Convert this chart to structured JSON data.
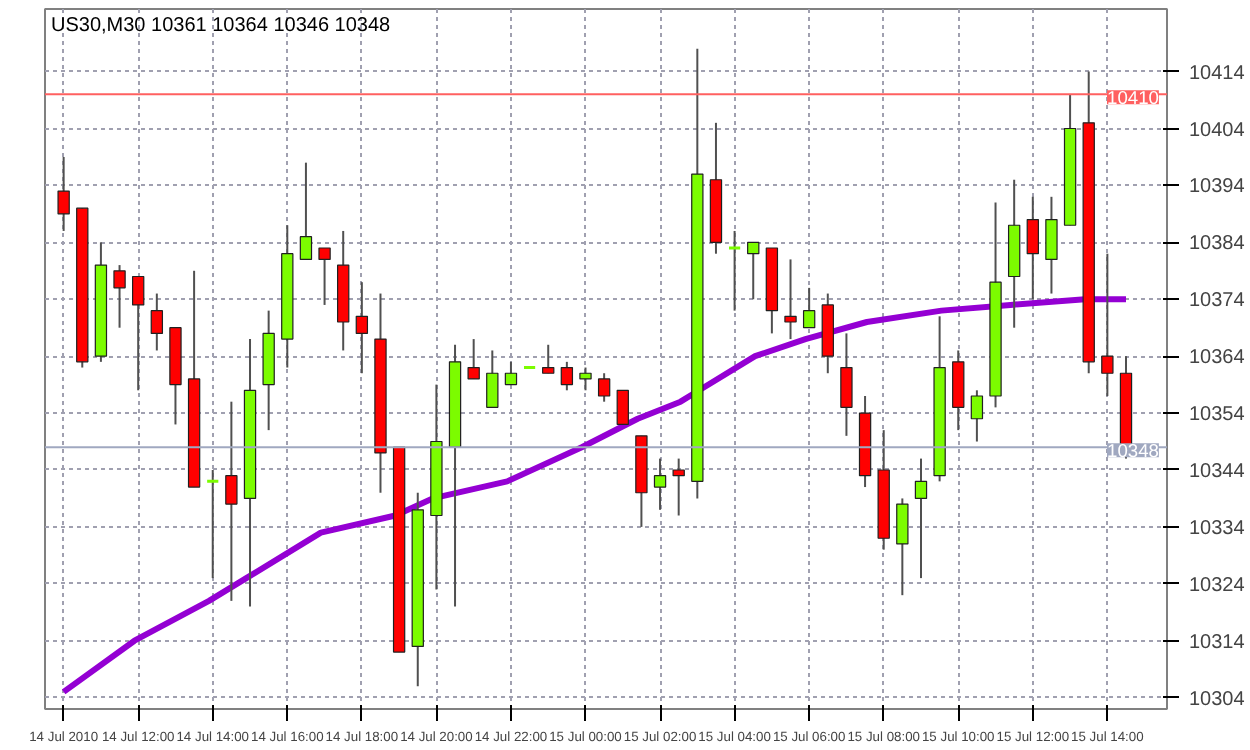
{
  "chart_data": {
    "type": "candlestick",
    "title": "US30,M30  10361 10364 10346 10348",
    "x": [
      "2010-07-14T10:00",
      "2010-07-14T10:30",
      "2010-07-14T11:00",
      "2010-07-14T11:30",
      "2010-07-14T12:00",
      "2010-07-14T12:30",
      "2010-07-14T13:00",
      "2010-07-14T13:30",
      "2010-07-14T14:00",
      "2010-07-14T14:30",
      "2010-07-14T15:00",
      "2010-07-14T15:30",
      "2010-07-14T16:00",
      "2010-07-14T16:30",
      "2010-07-14T17:00",
      "2010-07-14T17:30",
      "2010-07-14T18:00",
      "2010-07-14T18:30",
      "2010-07-14T19:00",
      "2010-07-14T19:30",
      "2010-07-14T20:00",
      "2010-07-14T20:30",
      "2010-07-14T21:00",
      "2010-07-14T21:30",
      "2010-07-14T22:00",
      "2010-07-14T22:30",
      "2010-07-14T23:00",
      "2010-07-14T23:30",
      "2010-07-15T00:00",
      "2010-07-15T00:30",
      "2010-07-15T01:00",
      "2010-07-15T01:30",
      "2010-07-15T02:00",
      "2010-07-15T02:30",
      "2010-07-15T03:00",
      "2010-07-15T03:30",
      "2010-07-15T04:00",
      "2010-07-15T04:30",
      "2010-07-15T05:00",
      "2010-07-15T05:30",
      "2010-07-15T06:00",
      "2010-07-15T06:30",
      "2010-07-15T07:00",
      "2010-07-15T07:30",
      "2010-07-15T08:00",
      "2010-07-15T08:30",
      "2010-07-15T09:00",
      "2010-07-15T09:30",
      "2010-07-15T10:00",
      "2010-07-15T10:30",
      "2010-07-15T11:00",
      "2010-07-15T11:30",
      "2010-07-15T12:00",
      "2010-07-15T12:30",
      "2010-07-15T13:00",
      "2010-07-15T13:30",
      "2010-07-15T14:00",
      "2010-07-15T14:30"
    ],
    "ohlc": [
      [
        10393,
        10399,
        10386,
        10389
      ],
      [
        10390,
        10390,
        10362,
        10363
      ],
      [
        10364,
        10384,
        10363,
        10380
      ],
      [
        10379,
        10380,
        10369,
        10376
      ],
      [
        10378,
        10378,
        10358,
        10373
      ],
      [
        10372,
        10375,
        10365,
        10368
      ],
      [
        10369,
        10369,
        10352,
        10359
      ],
      [
        10360,
        10379,
        10341,
        10341
      ],
      [
        10342,
        10344,
        10325,
        10342
      ],
      [
        10343,
        10356,
        10321,
        10338
      ],
      [
        10339,
        10367,
        10320,
        10358
      ],
      [
        10359,
        10372,
        10351,
        10368
      ],
      [
        10367,
        10387,
        10362,
        10382
      ],
      [
        10381,
        10398,
        10381,
        10385
      ],
      [
        10383,
        10383,
        10373,
        10381
      ],
      [
        10380,
        10386,
        10365,
        10370
      ],
      [
        10371,
        10377,
        10361,
        10368
      ],
      [
        10367,
        10375,
        10340,
        10347
      ],
      [
        10348,
        10348,
        10312,
        10312
      ],
      [
        10313,
        10340,
        10306,
        10337
      ],
      [
        10336,
        10359,
        10323,
        10349
      ],
      [
        10348,
        10366,
        10320,
        10363
      ],
      [
        10362,
        10367,
        10360,
        10360
      ],
      [
        10355,
        10365,
        10355,
        10361
      ],
      [
        10359,
        10363,
        10359,
        10361
      ],
      [
        10362,
        10362,
        10362,
        10362
      ],
      [
        10362,
        10366,
        10361,
        10361
      ],
      [
        10362,
        10363,
        10358,
        10359
      ],
      [
        10360,
        10362,
        10358,
        10361
      ],
      [
        10360,
        10361,
        10356,
        10357
      ],
      [
        10358,
        10358,
        10352,
        10352
      ],
      [
        10350,
        10350,
        10334,
        10340
      ],
      [
        10341,
        10346,
        10337,
        10343
      ],
      [
        10344,
        10346,
        10336,
        10343
      ],
      [
        10342,
        10418,
        10339,
        10396
      ],
      [
        10395,
        10405,
        10382,
        10384
      ],
      [
        10383,
        10386,
        10372,
        10383
      ],
      [
        10382,
        10384,
        10374,
        10384
      ],
      [
        10383,
        10383,
        10368,
        10372
      ],
      [
        10371,
        10381,
        10367,
        10370
      ],
      [
        10369,
        10376,
        10369,
        10372
      ],
      [
        10373,
        10375,
        10361,
        10364
      ],
      [
        10362,
        10368,
        10350,
        10355
      ],
      [
        10354,
        10357,
        10341,
        10343
      ],
      [
        10344,
        10351,
        10330,
        10332
      ],
      [
        10331,
        10339,
        10322,
        10338
      ],
      [
        10339,
        10346,
        10325,
        10342
      ],
      [
        10343,
        10371,
        10342,
        10362
      ],
      [
        10363,
        10365,
        10351,
        10355
      ],
      [
        10353,
        10358,
        10349,
        10357
      ],
      [
        10357,
        10391,
        10355,
        10377
      ],
      [
        10378,
        10395,
        10369,
        10387
      ],
      [
        10388,
        10392,
        10374,
        10382
      ],
      [
        10381,
        10392,
        10375,
        10388
      ],
      [
        10387,
        10410,
        10387,
        10404
      ],
      [
        10405,
        10414,
        10361,
        10363
      ],
      [
        10364,
        10382,
        10357,
        10361
      ],
      [
        10361,
        10364,
        10346,
        10348
      ]
    ],
    "colors": [
      "#ff0000",
      "#ff0000",
      "#7cfc00",
      "#ff0000",
      "#ff0000",
      "#ff0000",
      "#ff0000",
      "#ff0000",
      "#7cfc00",
      "#ff0000",
      "#7cfc00",
      "#7cfc00",
      "#7cfc00",
      "#7cfc00",
      "#ff0000",
      "#ff0000",
      "#ff0000",
      "#ff0000",
      "#ff0000",
      "#7cfc00",
      "#7cfc00",
      "#7cfc00",
      "#ff0000",
      "#7cfc00",
      "#7cfc00",
      "#7cfc00",
      "#ff0000",
      "#ff0000",
      "#7cfc00",
      "#ff0000",
      "#ff0000",
      "#ff0000",
      "#7cfc00",
      "#ff0000",
      "#7cfc00",
      "#ff0000",
      "#7cfc00",
      "#7cfc00",
      "#ff0000",
      "#ff0000",
      "#7cfc00",
      "#ff0000",
      "#ff0000",
      "#ff0000",
      "#ff0000",
      "#7cfc00",
      "#7cfc00",
      "#7cfc00",
      "#ff0000",
      "#7cfc00",
      "#7cfc00",
      "#7cfc00",
      "#ff0000",
      "#7cfc00",
      "#7cfc00",
      "#ff0000",
      "#ff0000",
      "#ff0000"
    ],
    "series": [
      {
        "type": "line",
        "color": "#9400d3",
        "x": [
          "2010-07-14T10:00",
          "2010-07-14T11:54",
          "2010-07-14T13:54",
          "2010-07-14T14:54",
          "2010-07-14T16:54",
          "2010-07-14T18:54",
          "2010-07-14T19:54",
          "2010-07-14T21:54",
          "2010-07-14T23:54",
          "2010-07-15T01:24",
          "2010-07-15T02:33",
          "2010-07-15T03:03",
          "2010-07-15T04:33",
          "2010-07-15T05:54",
          "2010-07-15T07:33",
          "2010-07-15T09:33",
          "2010-07-15T11:24",
          "2010-07-15T13:24",
          "2010-07-15T14:30"
        ],
        "values": [
          10305,
          10314,
          10321,
          10325,
          10333,
          10336,
          10339,
          10342,
          10348,
          10353,
          10356,
          10358,
          10364,
          10367,
          10370,
          10372,
          10373,
          10374,
          10374
        ]
      }
    ],
    "xlim": [
      "2010-07-14T09:30",
      "2010-07-15T15:36"
    ],
    "xticks": [
      {
        "value": "2010-07-14T10:00",
        "label": "14 Jul 2010"
      },
      {
        "value": "2010-07-14T12:00",
        "label": "14 Jul 12:00"
      },
      {
        "value": "2010-07-14T14:00",
        "label": "14 Jul 14:00"
      },
      {
        "value": "2010-07-14T16:00",
        "label": "14 Jul 16:00"
      },
      {
        "value": "2010-07-14T18:00",
        "label": "14 Jul 18:00"
      },
      {
        "value": "2010-07-14T20:00",
        "label": "14 Jul 20:00"
      },
      {
        "value": "2010-07-14T22:00",
        "label": "14 Jul 22:00"
      },
      {
        "value": "2010-07-15T00:00",
        "label": "15 Jul 00:00"
      },
      {
        "value": "2010-07-15T02:00",
        "label": "15 Jul 02:00"
      },
      {
        "value": "2010-07-15T04:00",
        "label": "15 Jul 04:00"
      },
      {
        "value": "2010-07-15T06:00",
        "label": "15 Jul 06:00"
      },
      {
        "value": "2010-07-15T08:00",
        "label": "15 Jul 08:00"
      },
      {
        "value": "2010-07-15T10:00",
        "label": "15 Jul 10:00"
      },
      {
        "value": "2010-07-15T12:00",
        "label": "15 Jul 12:00"
      },
      {
        "value": "2010-07-15T14:00",
        "label": "15 Jul 14:00"
      }
    ],
    "ylim": [
      10302,
      10425
    ],
    "yticks": [
      10304,
      10314,
      10324,
      10334,
      10344,
      10354,
      10364,
      10374,
      10384,
      10394,
      10404,
      10414
    ],
    "ref_lines": [
      {
        "axis": "y",
        "value": 10410,
        "label": "10410",
        "color": "#ff6060"
      },
      {
        "axis": "y",
        "value": 10348,
        "label": "10348",
        "color": "#a0a8c0"
      }
    ],
    "grid": true,
    "line_style": "solid",
    "marker": "none"
  }
}
